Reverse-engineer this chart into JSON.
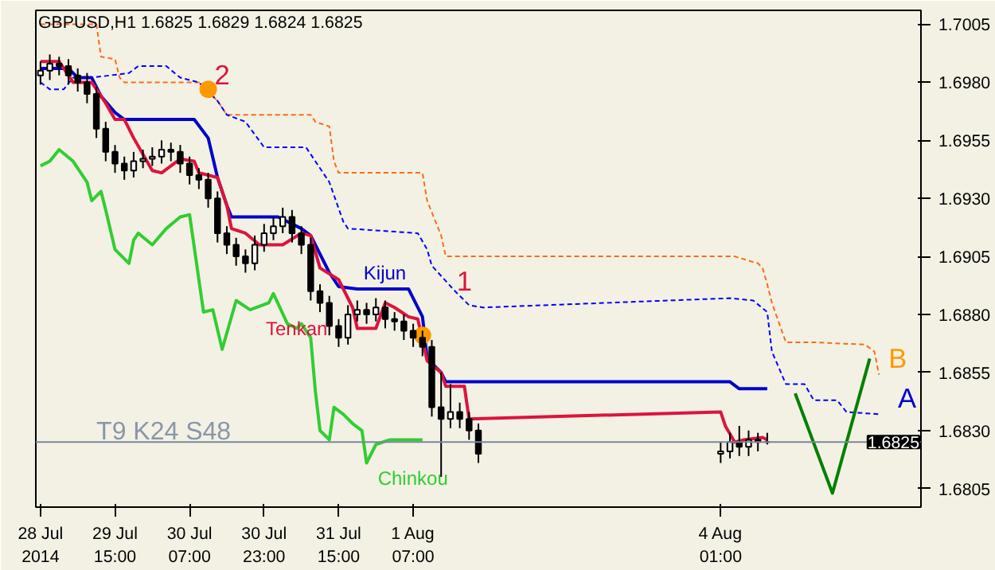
{
  "chart_data": {
    "type": "candlestick",
    "title": "GBPUSD,H1  1.6825 1.6829 1.6824 1.6825",
    "x": [
      "2014-07-28T23:00",
      "2014-07-29T01:00",
      "2014-07-29T03:00",
      "2014-07-29T05:00",
      "2014-07-29T07:00",
      "2014-07-29T09:00",
      "2014-07-29T11:00",
      "2014-07-29T13:00",
      "2014-07-29T15:00",
      "2014-07-29T17:00",
      "2014-07-29T19:00",
      "2014-07-29T21:00",
      "2014-07-29T23:00",
      "2014-07-30T01:00",
      "2014-07-30T03:00",
      "2014-07-30T05:00",
      "2014-07-30T07:00",
      "2014-07-30T09:00",
      "2014-07-30T11:00",
      "2014-07-30T13:00",
      "2014-07-30T15:00",
      "2014-07-30T17:00",
      "2014-07-30T19:00",
      "2014-07-30T21:00",
      "2014-07-30T23:00",
      "2014-07-31T01:00",
      "2014-07-31T03:00",
      "2014-07-31T05:00",
      "2014-07-31T07:00",
      "2014-07-31T09:00",
      "2014-07-31T11:00",
      "2014-07-31T13:00",
      "2014-07-31T15:00",
      "2014-07-31T17:00",
      "2014-07-31T19:00",
      "2014-07-31T21:00",
      "2014-07-31T23:00",
      "2014-08-01T01:00",
      "2014-08-01T03:00",
      "2014-08-01T05:00",
      "2014-08-01T07:00",
      "2014-08-01T09:00",
      "2014-08-01T11:00",
      "2014-08-01T13:00",
      "2014-08-01T15:00",
      "2014-08-01T17:00",
      "2014-08-01T19:00",
      "2014-08-01T21:00",
      "2014-08-04T01:00",
      "2014-08-04T03:00",
      "2014-08-04T05:00",
      "2014-08-04T07:00",
      "2014-08-04T09:00",
      "2014-08-04T11:00"
    ],
    "ohlc": [
      [
        1.6983,
        1.6989,
        1.6979,
        1.6985
      ],
      [
        1.6985,
        1.6992,
        1.6981,
        1.6988
      ],
      [
        1.6988,
        1.6991,
        1.6983,
        1.6987
      ],
      [
        1.6987,
        1.699,
        1.6979,
        1.6983
      ],
      [
        1.6983,
        1.6986,
        1.6976,
        1.698
      ],
      [
        1.698,
        1.6984,
        1.6971,
        1.6975
      ],
      [
        1.6975,
        1.6978,
        1.6956,
        1.696
      ],
      [
        1.696,
        1.6963,
        1.6946,
        1.695
      ],
      [
        1.695,
        1.6953,
        1.6941,
        1.6945
      ],
      [
        1.6945,
        1.6948,
        1.6938,
        1.6942
      ],
      [
        1.6942,
        1.695,
        1.6939,
        1.6946
      ],
      [
        1.6946,
        1.6951,
        1.6943,
        1.6947
      ],
      [
        1.6947,
        1.6952,
        1.6944,
        1.6948
      ],
      [
        1.6948,
        1.6955,
        1.6945,
        1.6951
      ],
      [
        1.6951,
        1.6954,
        1.6946,
        1.695
      ],
      [
        1.695,
        1.6953,
        1.6941,
        1.6945
      ],
      [
        1.6945,
        1.6948,
        1.6936,
        1.694
      ],
      [
        1.694,
        1.6943,
        1.6934,
        1.6938
      ],
      [
        1.6938,
        1.6941,
        1.6926,
        1.693
      ],
      [
        1.693,
        1.6933,
        1.6911,
        1.6915
      ],
      [
        1.6915,
        1.6918,
        1.6906,
        1.691
      ],
      [
        1.691,
        1.6913,
        1.6901,
        1.6905
      ],
      [
        1.6905,
        1.6908,
        1.6898,
        1.6902
      ],
      [
        1.6902,
        1.6914,
        1.6899,
        1.691
      ],
      [
        1.691,
        1.6919,
        1.6907,
        1.6915
      ],
      [
        1.6915,
        1.6922,
        1.6912,
        1.6918
      ],
      [
        1.6918,
        1.6926,
        1.6915,
        1.6922
      ],
      [
        1.6922,
        1.6925,
        1.6911,
        1.6915
      ],
      [
        1.6915,
        1.6918,
        1.6906,
        1.691
      ],
      [
        1.691,
        1.6913,
        1.6886,
        1.689
      ],
      [
        1.689,
        1.6893,
        1.6881,
        1.6885
      ],
      [
        1.6885,
        1.6888,
        1.6871,
        1.6875
      ],
      [
        1.6875,
        1.6878,
        1.6866,
        1.687
      ],
      [
        1.687,
        1.6884,
        1.6867,
        1.688
      ],
      [
        1.688,
        1.6886,
        1.6877,
        1.6882
      ],
      [
        1.6882,
        1.6885,
        1.6876,
        1.688
      ],
      [
        1.688,
        1.6887,
        1.6877,
        1.6883
      ],
      [
        1.6883,
        1.6886,
        1.6874,
        1.6878
      ],
      [
        1.6878,
        1.6881,
        1.6873,
        1.6877
      ],
      [
        1.6877,
        1.688,
        1.6869,
        1.6873
      ],
      [
        1.6873,
        1.6876,
        1.6866,
        1.687
      ],
      [
        1.687,
        1.6873,
        1.6862,
        1.6866
      ],
      [
        1.6866,
        1.6869,
        1.6836,
        1.684
      ],
      [
        1.684,
        1.6855,
        1.681,
        1.6835
      ],
      [
        1.6835,
        1.685,
        1.6831,
        1.6838
      ],
      [
        1.6838,
        1.6842,
        1.6831,
        1.6835
      ],
      [
        1.6835,
        1.6838,
        1.6826,
        1.683
      ],
      [
        1.683,
        1.6833,
        1.6816,
        1.682
      ],
      [
        1.682,
        1.6825,
        1.6816,
        1.6821
      ],
      [
        1.6821,
        1.6829,
        1.6818,
        1.6825
      ],
      [
        1.6825,
        1.6832,
        1.6819,
        1.6823
      ],
      [
        1.6823,
        1.683,
        1.6819,
        1.6826
      ],
      [
        1.6826,
        1.6829,
        1.6821,
        1.6825
      ],
      [
        1.6825,
        1.6829,
        1.6824,
        1.6825
      ]
    ],
    "series": [
      {
        "type": "line",
        "line_style": "dashed",
        "color": "#ff6a1a",
        "x": [
          "2014-07-28T23:00",
          "2014-07-29T11:00",
          "2014-07-29T12:00",
          "2014-07-29T15:00",
          "2014-07-29T16:00",
          "2014-07-29T17:00",
          "2014-07-30T09:00",
          "2014-07-30T13:00",
          "2014-07-30T15:00",
          "2014-07-31T09:00",
          "2014-07-31T10:00",
          "2014-07-31T13:00",
          "2014-07-31T14:00",
          "2014-07-31T15:00",
          "2014-08-01T09:00",
          "2014-08-01T10:00",
          "2014-08-01T13:00",
          "2014-08-01T14:00",
          "2014-08-04T04:00",
          "2014-08-04T09:00",
          "2014-08-04T10:00",
          "2014-08-04T11:00",
          "2014-08-04T12:00",
          "2014-08-04T15:00",
          "2014-08-04T21:00",
          "2014-08-05T08:00",
          "2014-08-05T10:00",
          "2014-08-05T11:00"
        ],
        "values": [
          1.7005,
          1.7005,
          1.6991,
          1.699,
          1.6982,
          1.698,
          1.698,
          1.6972,
          1.6966,
          1.6966,
          1.6963,
          1.6961,
          1.6946,
          1.6941,
          1.6941,
          1.6929,
          1.6914,
          1.6905,
          1.6905,
          1.6902,
          1.69,
          1.6893,
          1.6885,
          1.6868,
          1.6868,
          1.6867,
          1.6864,
          1.6854
        ]
      },
      {
        "type": "line",
        "line_style": "dashed",
        "color": "#0000ff",
        "x": [
          "2014-07-28T23:00",
          "2014-07-29T01:00",
          "2014-07-29T04:00",
          "2014-07-29T06:00",
          "2014-07-29T10:00",
          "2014-07-29T18:00",
          "2014-07-29T20:00",
          "2014-07-30T02:00",
          "2014-07-30T05:00",
          "2014-07-30T09:00",
          "2014-07-30T13:00",
          "2014-07-30T15:00",
          "2014-07-30T19:00",
          "2014-07-30T23:00",
          "2014-07-31T08:00",
          "2014-07-31T13:00",
          "2014-07-31T16:00",
          "2014-07-31T17:00",
          "2014-08-01T08:00",
          "2014-08-01T10:00",
          "2014-08-01T11:00",
          "2014-08-01T16:00",
          "2014-08-01T19:00",
          "2014-08-01T22:00",
          "2014-08-04T03:00",
          "2014-08-04T08:00",
          "2014-08-04T11:00",
          "2014-08-04T12:00",
          "2014-08-04T15:00",
          "2014-08-04T19:00",
          "2014-08-04T21:00",
          "2014-08-05T02:00",
          "2014-08-05T04:00",
          "2014-08-05T11:00"
        ],
        "values": [
          1.698,
          1.6977,
          1.6977,
          1.6982,
          1.6982,
          1.6984,
          1.6987,
          1.6987,
          1.6982,
          1.698,
          1.6972,
          1.6966,
          1.6963,
          1.6952,
          1.6952,
          1.6937,
          1.692,
          1.6917,
          1.6915,
          1.6908,
          1.6901,
          1.689,
          1.6884,
          1.6883,
          1.6887,
          1.6886,
          1.6881,
          1.6864,
          1.685,
          1.685,
          1.6843,
          1.6843,
          1.6838,
          1.6837
        ]
      },
      {
        "type": "line",
        "name": "Chinkou",
        "color": "#32cd32",
        "x": [
          "2014-07-28T23:00",
          "2014-07-29T01:00",
          "2014-07-29T03:00",
          "2014-07-29T06:00",
          "2014-07-29T09:00",
          "2014-07-29T10:00",
          "2014-07-29T12:00",
          "2014-07-29T13:00",
          "2014-07-29T15:00",
          "2014-07-29T18:00",
          "2014-07-29T19:00",
          "2014-07-29T20:00",
          "2014-07-29T23:00",
          "2014-07-30T02:00",
          "2014-07-30T05:00",
          "2014-07-30T07:00",
          "2014-07-30T10:00",
          "2014-07-30T12:00",
          "2014-07-30T14:00",
          "2014-07-30T17:00",
          "2014-07-30T20:00",
          "2014-07-31T00:00",
          "2014-07-31T01:00",
          "2014-07-31T04:00",
          "2014-07-31T06:00",
          "2014-07-31T07:00",
          "2014-07-31T09:00",
          "2014-07-31T10:00",
          "2014-07-31T11:00",
          "2014-07-31T13:00",
          "2014-07-31T14:00",
          "2014-07-31T16:00",
          "2014-07-31T18:00",
          "2014-07-31T20:00",
          "2014-07-31T21:00",
          "2014-07-31T23:00",
          "2014-08-01T02:00",
          "2014-08-01T09:00"
        ],
        "values": [
          1.6944,
          1.6946,
          1.6951,
          1.6946,
          1.6937,
          1.6929,
          1.6933,
          1.6925,
          1.6908,
          1.6902,
          1.6912,
          1.6915,
          1.691,
          1.6917,
          1.6922,
          1.6923,
          1.6881,
          1.6882,
          1.6865,
          1.6886,
          1.6882,
          1.6885,
          1.6889,
          1.6876,
          1.6874,
          1.6876,
          1.687,
          1.6847,
          1.683,
          1.6826,
          1.684,
          1.6837,
          1.6833,
          1.683,
          1.6816,
          1.6824,
          1.6826,
          1.6826
        ]
      },
      {
        "type": "line",
        "name": "Kijun",
        "color": "#0000cd",
        "x": [
          "2014-07-28T23:00",
          "2014-07-29T05:00",
          "2014-07-29T07:00",
          "2014-07-29T10:00",
          "2014-07-29T12:00",
          "2014-07-29T15:00",
          "2014-07-29T17:00",
          "2014-07-30T08:00",
          "2014-07-30T11:00",
          "2014-07-30T13:00",
          "2014-07-30T15:00",
          "2014-07-30T16:00",
          "2014-07-31T02:00",
          "2014-07-31T07:00",
          "2014-07-31T09:00",
          "2014-07-31T11:00",
          "2014-07-31T13:00",
          "2014-07-31T15:00",
          "2014-07-31T19:00",
          "2014-08-01T06:00",
          "2014-08-01T07:00",
          "2014-08-01T09:00",
          "2014-08-01T10:00",
          "2014-08-01T13:00",
          "2014-08-01T14:00",
          "2014-08-04T03:00",
          "2014-08-04T05:00",
          "2014-08-04T11:00"
        ],
        "values": [
          1.6986,
          1.6986,
          1.6982,
          1.6982,
          1.6974,
          1.6967,
          1.6964,
          1.6964,
          1.6956,
          1.6939,
          1.6927,
          1.6922,
          1.6922,
          1.6917,
          1.6914,
          1.6906,
          1.6898,
          1.6892,
          1.6891,
          1.6891,
          1.6887,
          1.6879,
          1.6861,
          1.6855,
          1.6851,
          1.6851,
          1.6848,
          1.6848
        ]
      },
      {
        "type": "line",
        "name": "Tenkan",
        "color": "#dc143c",
        "x": [
          "2014-07-28T23:00",
          "2014-07-29T03:00",
          "2014-07-29T06:00",
          "2014-07-29T10:00",
          "2014-07-29T13:00",
          "2014-07-29T15:00",
          "2014-07-29T17:00",
          "2014-07-29T19:00",
          "2014-07-29T23:00",
          "2014-07-30T01:00",
          "2014-07-30T05:00",
          "2014-07-30T08:00",
          "2014-07-30T09:00",
          "2014-07-30T13:00",
          "2014-07-30T15:00",
          "2014-07-30T16:00",
          "2014-07-30T19:00",
          "2014-07-30T22:00",
          "2014-07-31T03:00",
          "2014-07-31T07:00",
          "2014-07-31T09:00",
          "2014-07-31T11:00",
          "2014-07-31T15:00",
          "2014-07-31T18:00",
          "2014-07-31T19:00",
          "2014-07-31T23:00",
          "2014-08-01T01:00",
          "2014-08-01T03:00",
          "2014-08-01T06:00",
          "2014-08-01T08:00",
          "2014-08-01T10:00",
          "2014-08-01T13:00",
          "2014-08-01T14:00",
          "2014-08-01T18:00",
          "2014-08-01T19:00",
          "2014-08-04T01:00",
          "2014-08-04T02:00",
          "2014-08-04T04:00",
          "2014-08-04T06:00",
          "2014-08-04T10:00",
          "2014-08-04T11:00"
        ],
        "values": [
          1.6989,
          1.6989,
          1.698,
          1.698,
          1.6971,
          1.6964,
          1.6964,
          1.6956,
          1.6942,
          1.6941,
          1.6947,
          1.6946,
          1.6941,
          1.6939,
          1.6927,
          1.6917,
          1.6915,
          1.691,
          1.691,
          1.6915,
          1.6914,
          1.69,
          1.6895,
          1.6883,
          1.6874,
          1.6874,
          1.6885,
          1.6883,
          1.6879,
          1.6878,
          1.686,
          1.6855,
          1.6849,
          1.6849,
          1.6835,
          1.6838,
          1.6832,
          1.6825,
          1.6826,
          1.6827,
          1.6826
        ]
      },
      {
        "type": "scatter",
        "marker": "circle",
        "color": "#ff9900",
        "x": [
          "2014-07-30T11:00",
          "2014-08-01T09:00"
        ],
        "values": [
          1.6977,
          1.6871
        ]
      },
      {
        "type": "line",
        "color": "#008000",
        "x": [
          "2014-08-04T17:00",
          "2014-08-05T01:00",
          "2014-08-05T09:00"
        ],
        "values": [
          1.6846,
          1.6803,
          1.6861
        ]
      }
    ],
    "xlim": [
      "2014-07-28T22:00",
      "2014-08-05T20:00"
    ],
    "xticks": [
      {
        "value": "2014-07-28T23:00",
        "label": "28 Jul 2014"
      },
      {
        "value": "2014-07-29T15:00",
        "label": "29 Jul 15:00"
      },
      {
        "value": "2014-07-30T07:00",
        "label": "30 Jul 07:00"
      },
      {
        "value": "2014-07-30T23:00",
        "label": "30 Jul 23:00"
      },
      {
        "value": "2014-07-31T15:00",
        "label": "31 Jul 15:00"
      },
      {
        "value": "2014-08-01T07:00",
        "label": "1 Aug 07:00"
      },
      {
        "value": "2014-08-04T01:00",
        "label": "4 Aug 01:00"
      }
    ],
    "ylim": [
      1.6797,
      1.7011
    ],
    "yticks": [
      {
        "value": 1.7005,
        "label": "1.7005"
      },
      {
        "value": 1.698,
        "label": "1.6980"
      },
      {
        "value": 1.6955,
        "label": "1.6955"
      },
      {
        "value": 1.693,
        "label": "1.6930"
      },
      {
        "value": 1.6905,
        "label": "1.6905"
      },
      {
        "value": 1.688,
        "label": "1.6880"
      },
      {
        "value": 1.6855,
        "label": "1.6855"
      },
      {
        "value": 1.683,
        "label": "1.6830"
      },
      {
        "value": 1.6805,
        "label": "1.6805"
      }
    ],
    "ref_lines": [
      {
        "axis": "y",
        "value": 1.6825,
        "label": "1.6825",
        "color": "#778899"
      }
    ],
    "annotations": [
      "T9 K24 S48",
      "2",
      "1",
      "B",
      "A"
    ]
  }
}
